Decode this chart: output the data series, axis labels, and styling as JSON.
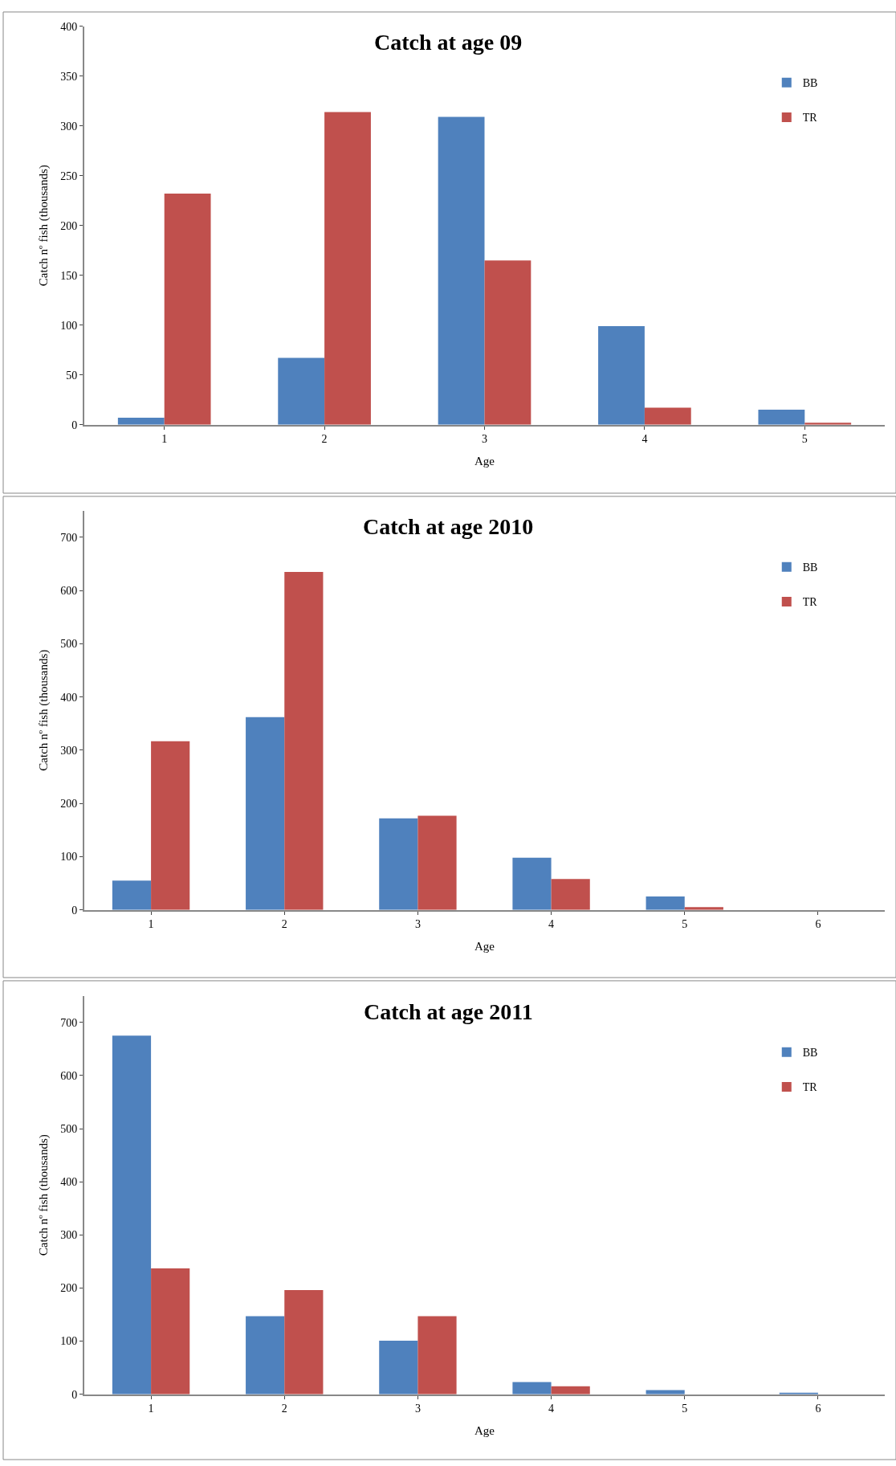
{
  "chart_data": [
    {
      "type": "bar",
      "title": "Catch at age 09",
      "xlabel": "Age",
      "ylabel": "Catch nº fish (thousands)",
      "categories": [
        "1",
        "2",
        "3",
        "4",
        "5"
      ],
      "ylim": [
        0,
        400
      ],
      "yticks": [
        0,
        50,
        100,
        150,
        200,
        250,
        300,
        350,
        400
      ],
      "legend": "top right",
      "series": [
        {
          "name": "BB",
          "color": "#4f81bd",
          "values": [
            7,
            67,
            309,
            99,
            15
          ]
        },
        {
          "name": "TR",
          "color": "#c0504d",
          "values": [
            232,
            314,
            165,
            17,
            2
          ]
        }
      ]
    },
    {
      "type": "bar",
      "title": "Catch at age 2010",
      "xlabel": "Age",
      "ylabel": "Catch nº fish (thousands)",
      "categories": [
        "1",
        "2",
        "3",
        "4",
        "5",
        "6"
      ],
      "ylim": [
        0,
        750
      ],
      "yticks": [
        0,
        100,
        200,
        300,
        400,
        500,
        600,
        700
      ],
      "legend": "top right",
      "series": [
        {
          "name": "BB",
          "color": "#4f81bd",
          "values": [
            55,
            362,
            172,
            98,
            25,
            null
          ]
        },
        {
          "name": "TR",
          "color": "#c0504d",
          "values": [
            317,
            635,
            177,
            58,
            5,
            null
          ]
        }
      ]
    },
    {
      "type": "bar",
      "title": "Catch at age 2011",
      "xlabel": "Age",
      "ylabel": "Catch nº fish (thousands)",
      "categories": [
        "1",
        "2",
        "3",
        "4",
        "5",
        "6"
      ],
      "ylim": [
        0,
        750
      ],
      "yticks": [
        0,
        100,
        200,
        300,
        400,
        500,
        600,
        700
      ],
      "legend": "top right",
      "series": [
        {
          "name": "BB",
          "color": "#4f81bd",
          "values": [
            675,
            147,
            101,
            23,
            8,
            2
          ]
        },
        {
          "name": "TR",
          "color": "#c0504d",
          "values": [
            237,
            196,
            147,
            15,
            null,
            null
          ]
        }
      ]
    }
  ]
}
